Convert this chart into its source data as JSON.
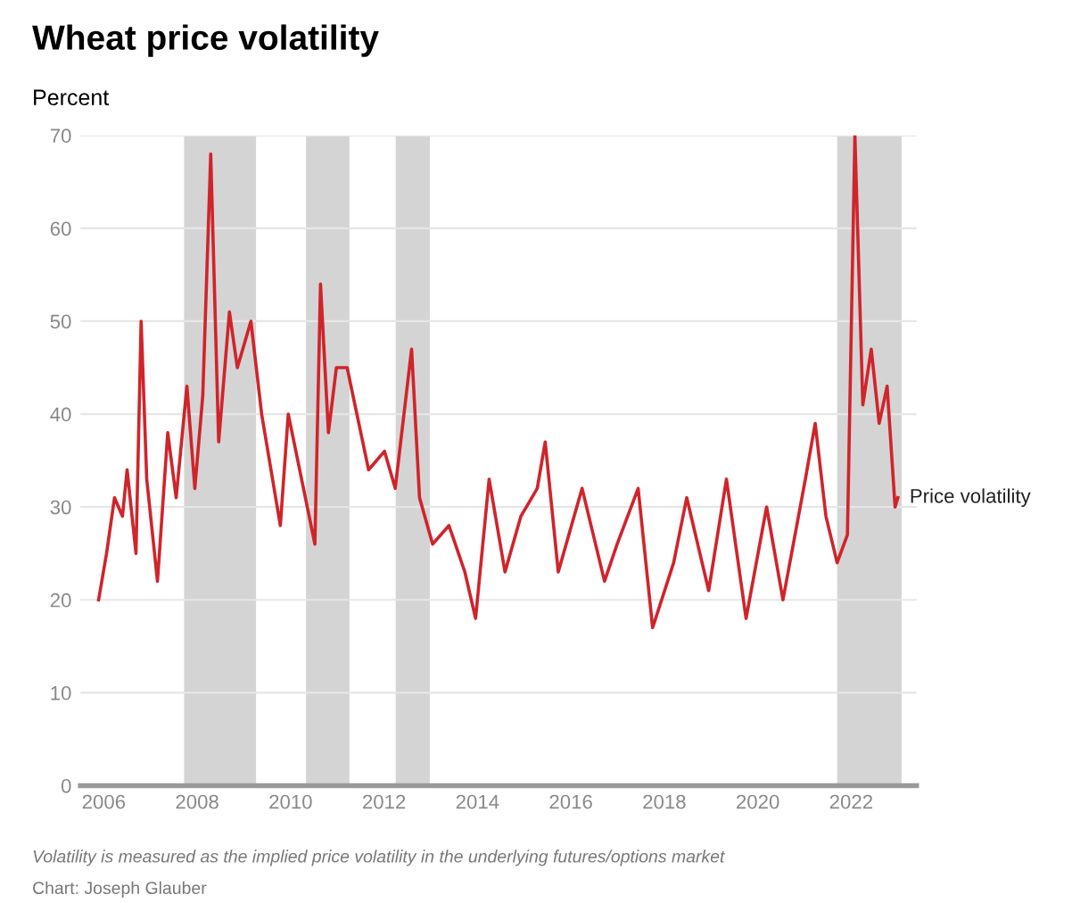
{
  "chart_data": {
    "type": "line",
    "title": "Wheat price volatility",
    "ylabel": "Percent",
    "x": [
      2005.89,
      2006.06,
      2006.23,
      2006.4,
      2006.5,
      2006.69,
      2006.8,
      2006.92,
      2007.15,
      2007.37,
      2007.55,
      2007.78,
      2007.95,
      2008.12,
      2008.29,
      2008.46,
      2008.69,
      2008.86,
      2009.15,
      2009.38,
      2009.78,
      2009.95,
      2010.52,
      2010.64,
      2010.81,
      2010.98,
      2011.21,
      2011.67,
      2012.01,
      2012.24,
      2012.59,
      2012.76,
      2013.04,
      2013.39,
      2013.73,
      2013.96,
      2014.25,
      2014.59,
      2014.93,
      2015.28,
      2015.45,
      2015.73,
      2016.24,
      2016.72,
      2016.99,
      2017.44,
      2017.75,
      2018.2,
      2018.48,
      2018.95,
      2019.33,
      2019.75,
      2020.19,
      2020.54,
      2021.02,
      2021.23,
      2021.46,
      2021.7,
      2021.92,
      2022.08,
      2022.25,
      2022.43,
      2022.6,
      2022.77,
      2022.94,
      2023.0
    ],
    "series": [
      {
        "name": "Price volatility",
        "color": "#d0242b",
        "values": [
          20,
          25,
          31,
          29,
          34,
          25,
          50,
          33,
          22,
          38,
          31,
          43,
          32,
          42,
          68,
          37,
          51,
          45,
          50,
          40,
          28,
          40,
          26,
          54,
          38,
          45,
          45,
          34,
          36,
          32,
          47,
          31,
          26,
          28,
          23,
          18,
          33,
          23,
          29,
          32,
          37,
          23,
          32,
          22,
          26,
          32,
          17,
          24,
          31,
          21,
          33,
          18,
          30,
          20,
          33,
          39,
          29,
          24,
          27,
          70,
          41,
          47,
          39,
          43,
          30,
          31
        ]
      }
    ],
    "xlim": [
      2005.5,
      2023.4
    ],
    "xticks": [
      2006,
      2008,
      2010,
      2012,
      2014,
      2016,
      2018,
      2020,
      2022
    ],
    "ylim": [
      0,
      70
    ],
    "yticks": [
      0,
      10,
      20,
      30,
      40,
      50,
      60,
      70
    ],
    "grid": "y",
    "bands": [
      {
        "axis": "x",
        "from": 2007.72,
        "to": 2009.26,
        "color": "#d4d4d4"
      },
      {
        "axis": "x",
        "from": 2010.33,
        "to": 2011.26,
        "color": "#d4d4d4"
      },
      {
        "axis": "x",
        "from": 2012.25,
        "to": 2012.98,
        "color": "#d4d4d4"
      },
      {
        "axis": "x",
        "from": 2021.7,
        "to": 2023.08,
        "color": "#d4d4d4"
      }
    ],
    "annotations": [
      "Volatility is measured as the implied price volatility in the underlying futures/options market",
      "Chart: Joseph Glauber"
    ]
  }
}
